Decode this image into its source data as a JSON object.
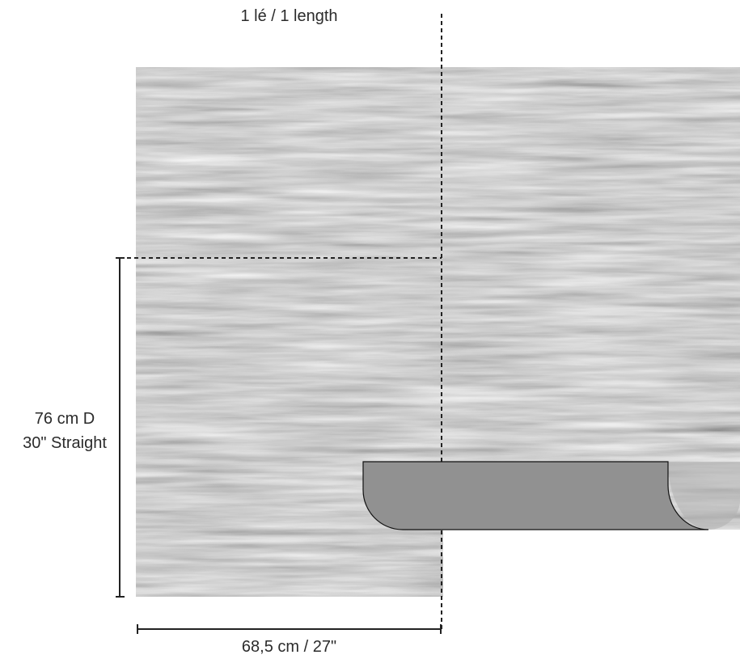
{
  "labels": {
    "top": "1 lé / 1 length",
    "bottom": "68,5 cm / 27\"",
    "side_line1": "76 cm D",
    "side_line2": "30\" Straight"
  },
  "colors": {
    "background": "#ffffff",
    "wallpaper_base": "#a9a9a9",
    "sample_swatch": "#919191",
    "dimension_line": "#222222",
    "text": "#2b2b2b"
  }
}
